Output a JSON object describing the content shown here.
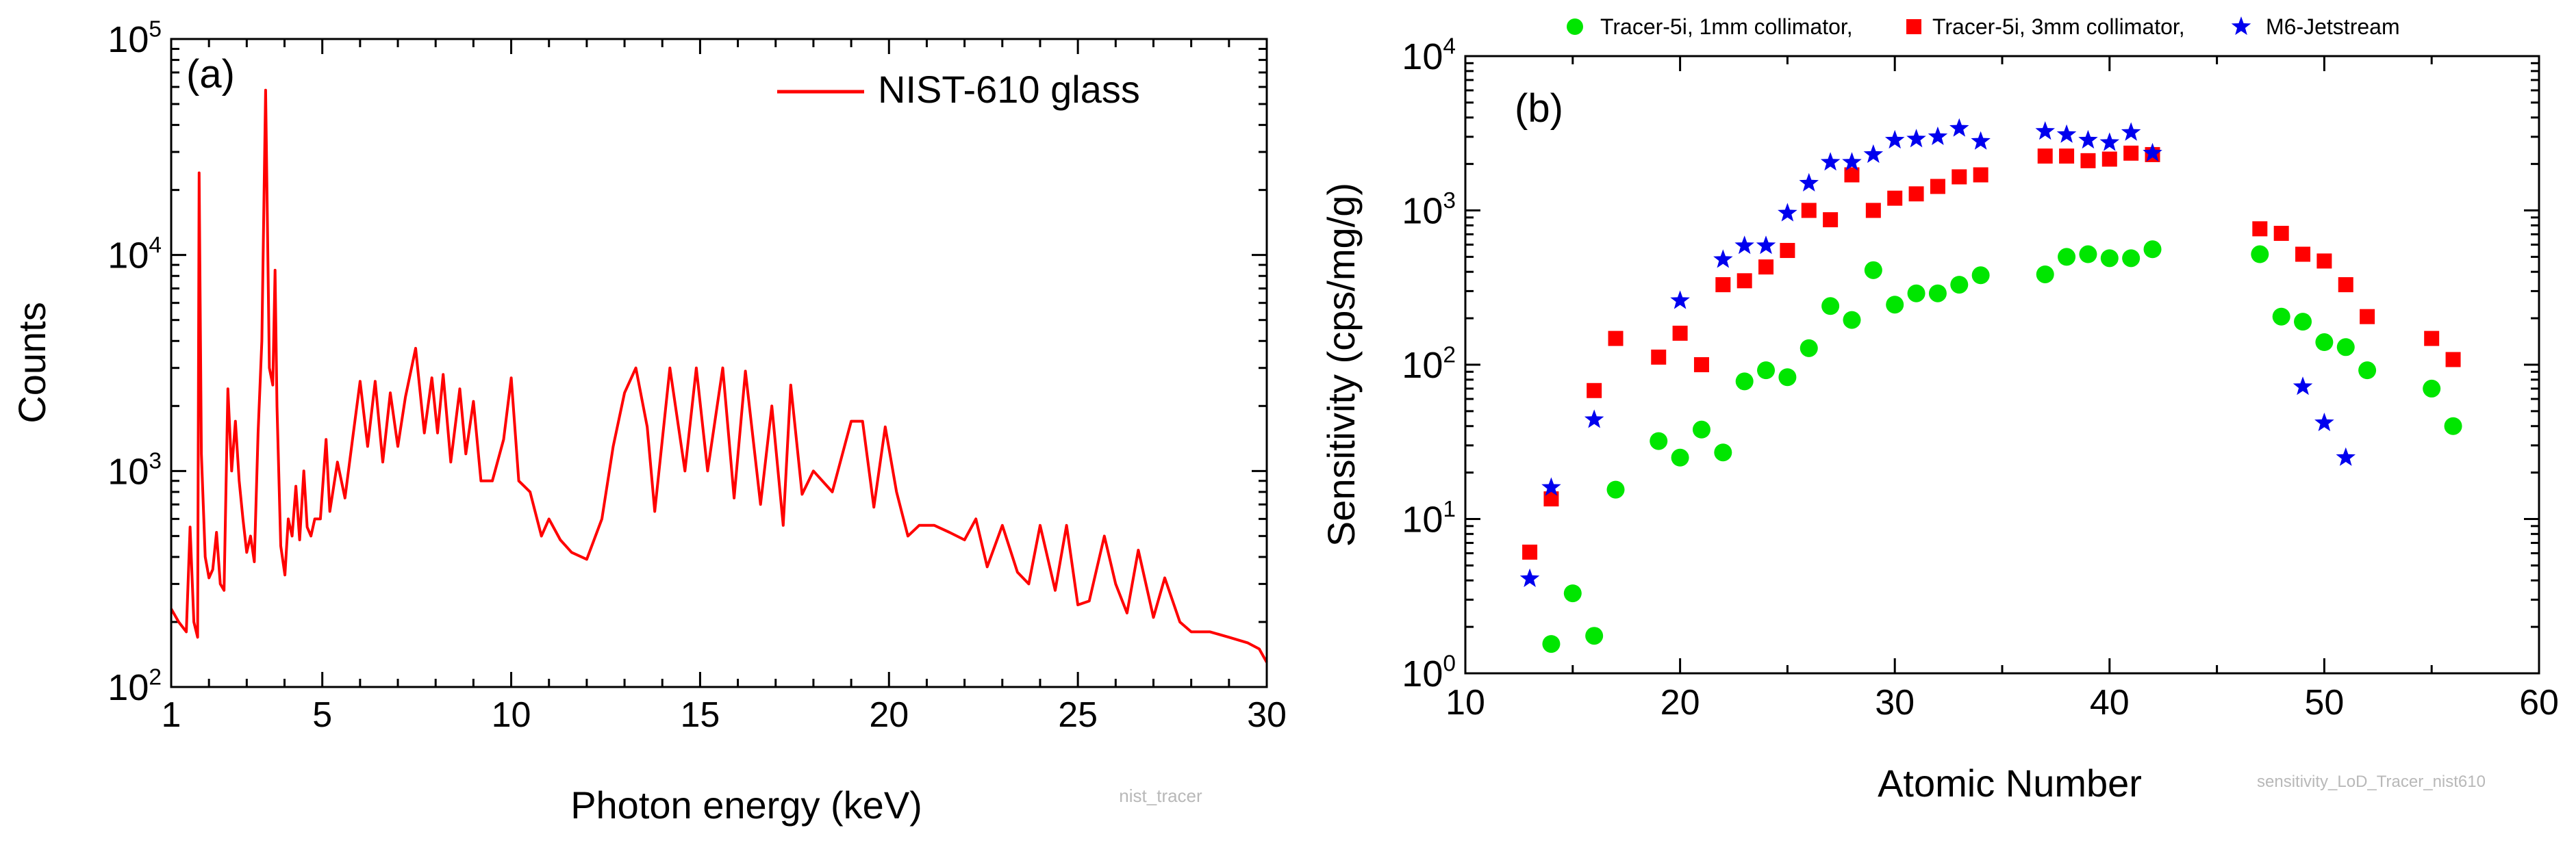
{
  "chart_data": [
    {
      "type": "line",
      "panel_label": "(a)",
      "xlabel": "Photon energy (keV)",
      "ylabel": "Counts",
      "xlim": [
        1,
        30
      ],
      "ylim": [
        100,
        100000
      ],
      "yscale": "log",
      "x_ticks": [
        1,
        5,
        10,
        15,
        20,
        25,
        30
      ],
      "y_ticks": [
        {
          "value": 100,
          "base": "10",
          "exp": "2"
        },
        {
          "value": 1000,
          "base": "10",
          "exp": "3"
        },
        {
          "value": 10000,
          "base": "10",
          "exp": "4"
        },
        {
          "value": 100000,
          "base": "10",
          "exp": "5"
        }
      ],
      "legend_position": "top-right",
      "watermark": "nist_tracer",
      "series": [
        {
          "name": "NIST-610 glass",
          "color": "#ff0000",
          "x": [
            1.0,
            1.2,
            1.4,
            1.5,
            1.6,
            1.7,
            1.74,
            1.8,
            1.9,
            2.0,
            2.1,
            2.2,
            2.3,
            2.4,
            2.5,
            2.6,
            2.7,
            2.8,
            2.9,
            3.0,
            3.1,
            3.2,
            3.3,
            3.4,
            3.5,
            3.6,
            3.69,
            3.75,
            3.8,
            3.9,
            4.01,
            4.1,
            4.2,
            4.3,
            4.4,
            4.51,
            4.6,
            4.7,
            4.8,
            4.95,
            5.1,
            5.2,
            5.4,
            5.6,
            5.8,
            6.0,
            6.2,
            6.4,
            6.6,
            6.8,
            7.0,
            7.2,
            7.47,
            7.7,
            7.9,
            8.05,
            8.2,
            8.4,
            8.64,
            8.8,
            9.0,
            9.2,
            9.5,
            9.8,
            10.0,
            10.2,
            10.5,
            10.8,
            11.0,
            11.3,
            11.6,
            12.0,
            12.4,
            12.7,
            13.0,
            13.3,
            13.6,
            13.8,
            14.2,
            14.6,
            14.9,
            15.2,
            15.6,
            15.9,
            16.2,
            16.6,
            16.9,
            17.2,
            17.4,
            17.7,
            18.0,
            18.5,
            19.0,
            19.3,
            19.6,
            19.9,
            20.2,
            20.5,
            20.8,
            21.2,
            21.6,
            22.0,
            22.3,
            22.6,
            23.0,
            23.4,
            23.7,
            24.0,
            24.4,
            24.7,
            25.0,
            25.3,
            25.7,
            26.0,
            26.3,
            26.6,
            27.0,
            27.3,
            27.7,
            28.0,
            28.5,
            29.0,
            29.5,
            29.8,
            30.0
          ],
          "y": [
            230,
            200,
            180,
            550,
            200,
            170,
            24000,
            1200,
            400,
            320,
            350,
            520,
            300,
            280,
            2400,
            1000,
            1700,
            900,
            600,
            420,
            500,
            380,
            1500,
            4000,
            58000,
            3000,
            2500,
            8500,
            2000,
            450,
            330,
            600,
            500,
            850,
            480,
            1000,
            550,
            500,
            600,
            600,
            1400,
            650,
            1100,
            750,
            1400,
            2600,
            1300,
            2600,
            1100,
            2300,
            1300,
            2200,
            3700,
            1500,
            2700,
            1500,
            2800,
            1100,
            2400,
            1200,
            2100,
            900,
            900,
            1400,
            2700,
            900,
            800,
            500,
            600,
            480,
            420,
            390,
            600,
            1300,
            2300,
            3000,
            1600,
            650,
            3000,
            1000,
            3000,
            1000,
            3000,
            750,
            2900,
            700,
            2000,
            560,
            2500,
            780,
            1000,
            800,
            1700,
            1700,
            680,
            1600,
            800,
            500,
            560,
            560,
            520,
            480,
            600,
            360,
            560,
            340,
            300,
            560,
            280,
            560,
            240,
            250,
            500,
            300,
            220,
            430,
            210,
            320,
            200,
            180,
            180,
            170,
            160,
            150,
            130
          ]
        }
      ]
    },
    {
      "type": "scatter",
      "panel_label": "(b)",
      "xlabel": "Atomic Number",
      "ylabel": "Sensitivity (cps/mg/g)",
      "xlim": [
        10,
        60
      ],
      "ylim": [
        1,
        10000
      ],
      "yscale": "log",
      "x_ticks": [
        10,
        20,
        30,
        40,
        50,
        60
      ],
      "y_ticks": [
        {
          "value": 1,
          "base": "10",
          "exp": "0"
        },
        {
          "value": 10,
          "base": "10",
          "exp": "1"
        },
        {
          "value": 100,
          "base": "10",
          "exp": "2"
        },
        {
          "value": 1000,
          "base": "10",
          "exp": "3"
        },
        {
          "value": 10000,
          "base": "10",
          "exp": "4"
        }
      ],
      "legend_position": "top",
      "watermark": "sensitivity_LoD_Tracer_nist610",
      "series": [
        {
          "name": "Tracer-5i, 1mm collimator,",
          "marker": "circle",
          "color": "#00e600",
          "x": [
            14,
            15,
            16,
            17,
            19,
            20,
            21,
            22,
            23,
            24,
            25,
            26,
            27,
            28,
            29,
            30,
            31,
            32,
            33,
            34,
            37,
            38,
            39,
            40,
            41,
            42,
            47,
            48,
            49,
            50,
            51,
            52,
            55,
            56
          ],
          "y": [
            1.55,
            3.3,
            1.75,
            15.5,
            32,
            25,
            38,
            27,
            78,
            92,
            83,
            128,
            240,
            195,
            410,
            245,
            290,
            290,
            330,
            380,
            385,
            500,
            520,
            490,
            490,
            560,
            520,
            205,
            190,
            140,
            130,
            92,
            70,
            40
          ]
        },
        {
          "name": "Tracer-5i, 3mm collimator,",
          "marker": "square",
          "color": "#ff0000",
          "x": [
            13,
            14,
            16,
            17,
            19,
            20,
            21,
            22,
            23,
            24,
            25,
            26,
            27,
            28,
            29,
            30,
            31,
            32,
            33,
            34,
            37,
            38,
            39,
            40,
            41,
            42,
            47,
            48,
            49,
            50,
            51,
            52,
            55,
            56
          ],
          "y": [
            6.1,
            13.5,
            68,
            148,
            112,
            160,
            100,
            330,
            350,
            430,
            550,
            1000,
            870,
            1700,
            1000,
            1200,
            1280,
            1430,
            1650,
            1700,
            2250,
            2250,
            2100,
            2150,
            2350,
            2300,
            760,
            710,
            520,
            470,
            330,
            205,
            148,
            108
          ]
        },
        {
          "name": "M6-Jetstream",
          "marker": "star",
          "color": "#0000ee",
          "x": [
            13,
            14,
            16,
            20,
            22,
            23,
            24,
            25,
            26,
            27,
            28,
            29,
            30,
            31,
            32,
            33,
            34,
            37,
            38,
            39,
            40,
            41,
            42,
            49,
            50,
            51
          ],
          "y": [
            4.1,
            16,
            44,
            260,
            480,
            590,
            590,
            960,
            1500,
            2050,
            2050,
            2300,
            2850,
            2900,
            3000,
            3400,
            2800,
            3250,
            3100,
            2850,
            2750,
            3200,
            2350,
            72,
            42,
            25
          ]
        }
      ]
    }
  ]
}
